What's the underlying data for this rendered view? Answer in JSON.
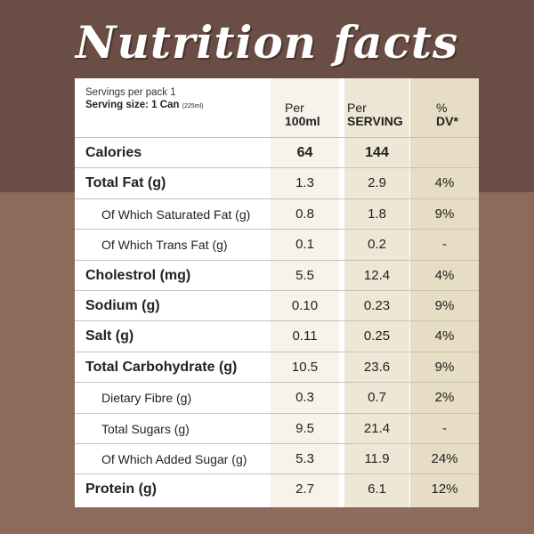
{
  "title": "Nutrition facts",
  "servings": "Servings per pack 1",
  "serving_size": "Serving size: 1 Can",
  "serving_size_ml": "(225ml)",
  "columns": {
    "per100_top": "Per",
    "per100_bottom": "100ml",
    "serving_top": "Per",
    "serving_bottom": "SERVING",
    "dv_top": "%",
    "dv_bottom": "DV*"
  },
  "rows": [
    {
      "label": "Calories",
      "per100": "64",
      "serving": "144",
      "dv": ""
    },
    {
      "label": "Total Fat (g)",
      "per100": "1.3",
      "serving": "2.9",
      "dv": "4%"
    },
    {
      "label": "Of Which Saturated Fat (g)",
      "per100": "0.8",
      "serving": "1.8",
      "dv": "9%"
    },
    {
      "label": "Of Which Trans Fat (g)",
      "per100": "0.1",
      "serving": "0.2",
      "dv": "-"
    },
    {
      "label": "Cholestrol (mg)",
      "per100": "5.5",
      "serving": "12.4",
      "dv": "4%"
    },
    {
      "label": "Sodium (g)",
      "per100": "0.10",
      "serving": "0.23",
      "dv": "9%"
    },
    {
      "label": "Salt (g)",
      "per100": "0.11",
      "serving": "0.25",
      "dv": "4%"
    },
    {
      "label": "Total Carbohydrate (g)",
      "per100": "10.5",
      "serving": "23.6",
      "dv": "9%"
    },
    {
      "label": "Dietary Fibre (g)",
      "per100": "0.3",
      "serving": "0.7",
      "dv": "2%"
    },
    {
      "label": "Total Sugars (g)",
      "per100": "9.5",
      "serving": "21.4",
      "dv": "-"
    },
    {
      "label": "Of Which Added Sugar (g)",
      "per100": "5.3",
      "serving": "11.9",
      "dv": "24%"
    },
    {
      "label": "Protein (g)",
      "per100": "2.7",
      "serving": "6.1",
      "dv": "12%"
    }
  ]
}
